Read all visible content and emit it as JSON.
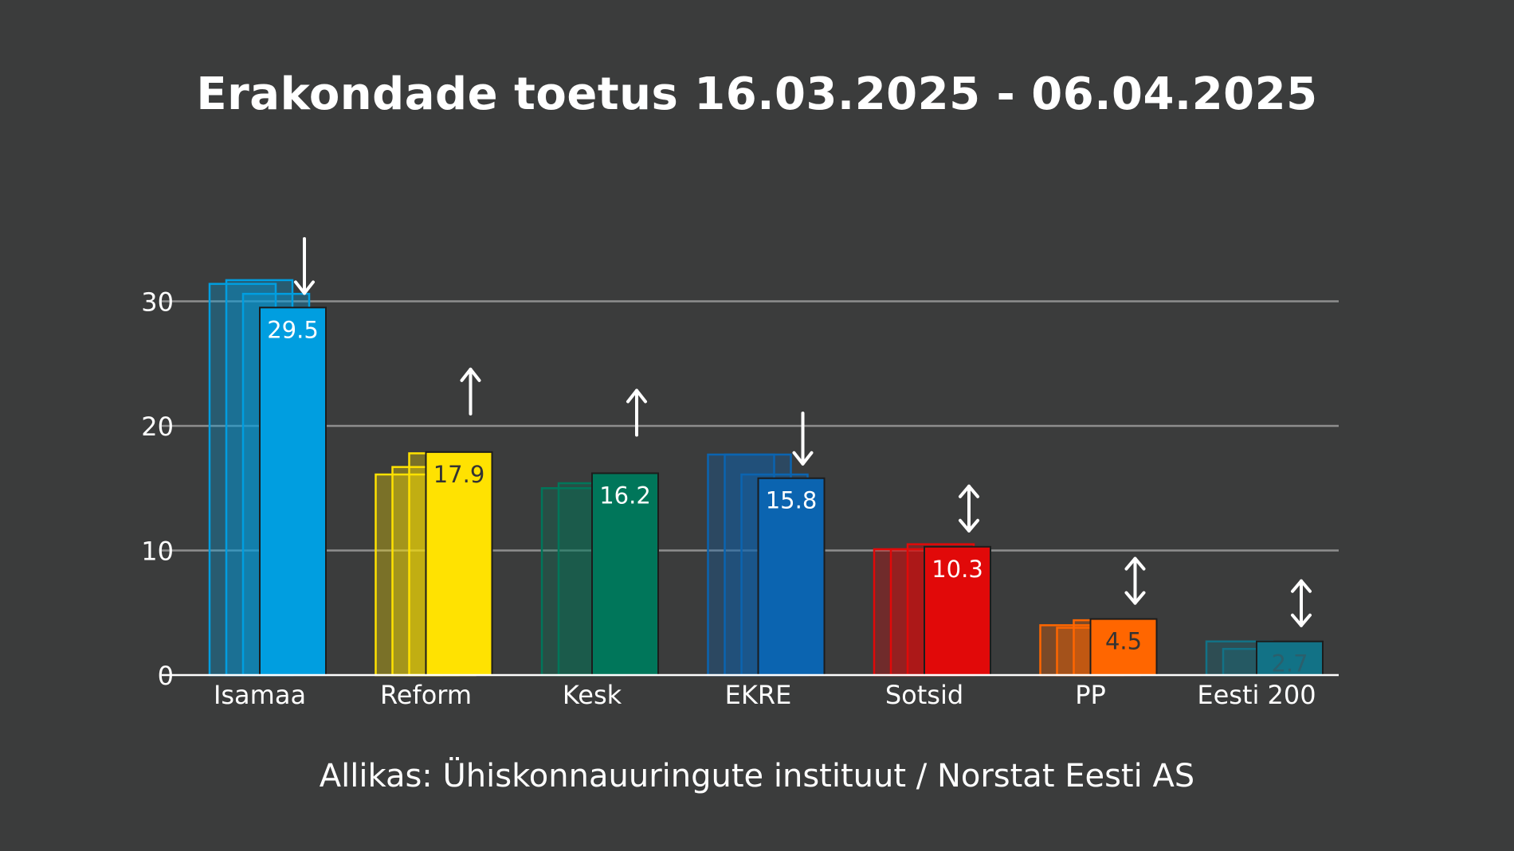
{
  "title": "Erakondade toetus 16.03.2025 - 06.04.2025",
  "source": "Allikas: Ühiskonnauuringute instituut / Norstat Eesti AS",
  "chart_data": {
    "type": "bar",
    "title": "Erakondade toetus 16.03.2025 - 06.04.2025",
    "xlabel": "",
    "ylabel": "",
    "ylim": [
      0,
      33
    ],
    "yticks": [
      0,
      10,
      20,
      30
    ],
    "grid": true,
    "legend": "none",
    "categories": [
      "Isamaa",
      "Reform",
      "Kesk",
      "EKRE",
      "Sotsid",
      "PP",
      "Eesti 200"
    ],
    "colors": [
      "#009ee0",
      "#ffe201",
      "#00765a",
      "#0b64b0",
      "#e10909",
      "#ff6600",
      "#127286"
    ],
    "current_values": [
      29.5,
      17.9,
      16.2,
      15.8,
      10.3,
      4.5,
      2.7
    ],
    "value_labels": [
      "29.5",
      "17.9",
      "16.2",
      "15.8",
      "10.3",
      "4.5",
      "2.7"
    ],
    "label_colors": [
      "#ffffff",
      "#333333",
      "#ffffff",
      "#ffffff",
      "#ffffff",
      "#333333",
      "#2b5f6c"
    ],
    "previous_values": [
      [
        31.4,
        31.7,
        30.6
      ],
      [
        16.1,
        16.7,
        17.8
      ],
      [
        15.0,
        15.4
      ],
      [
        17.7,
        17.7,
        16.1
      ],
      [
        10.1,
        10.1,
        10.5
      ],
      [
        4.0,
        3.8,
        4.4
      ],
      [
        2.7,
        2.1
      ]
    ],
    "trend": [
      "down",
      "up",
      "up",
      "down",
      "both",
      "both",
      "both"
    ]
  }
}
